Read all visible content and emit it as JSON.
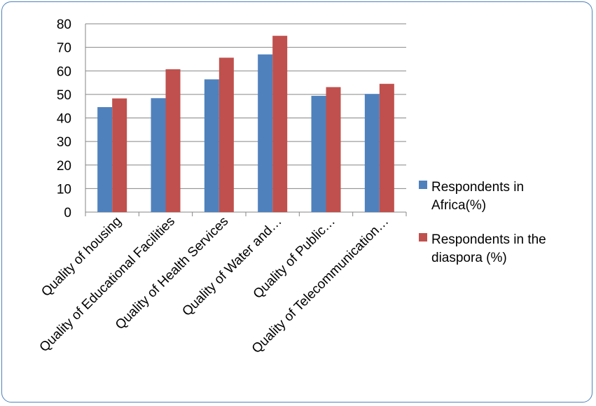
{
  "chart_data": {
    "type": "bar",
    "title": "",
    "xlabel": "",
    "ylabel": "",
    "ylim": [
      0,
      80
    ],
    "yticks": [
      0,
      10,
      20,
      30,
      40,
      50,
      60,
      70,
      80
    ],
    "grid": true,
    "legend_position": "right",
    "categories": [
      "Quality of housing",
      "Quality of Educational Facilities",
      "Quality of Health Services",
      "Quality of Water and…",
      "Quality of Public…",
      "Quality of Telecommunication…"
    ],
    "series": [
      {
        "name": "Respondents in Africa(%)",
        "legend_lines": [
          "Respondents in",
          "Africa(%)"
        ],
        "color": "#4f81bd",
        "values": [
          44.6,
          48.4,
          56.4,
          67.0,
          49.4,
          50.2
        ]
      },
      {
        "name": "Respondents in the diaspora (%)",
        "legend_lines": [
          "Respondents in the",
          "diaspora (%)"
        ],
        "color": "#c0504d",
        "values": [
          48.3,
          60.7,
          65.6,
          74.9,
          53.1,
          54.5
        ]
      }
    ]
  }
}
